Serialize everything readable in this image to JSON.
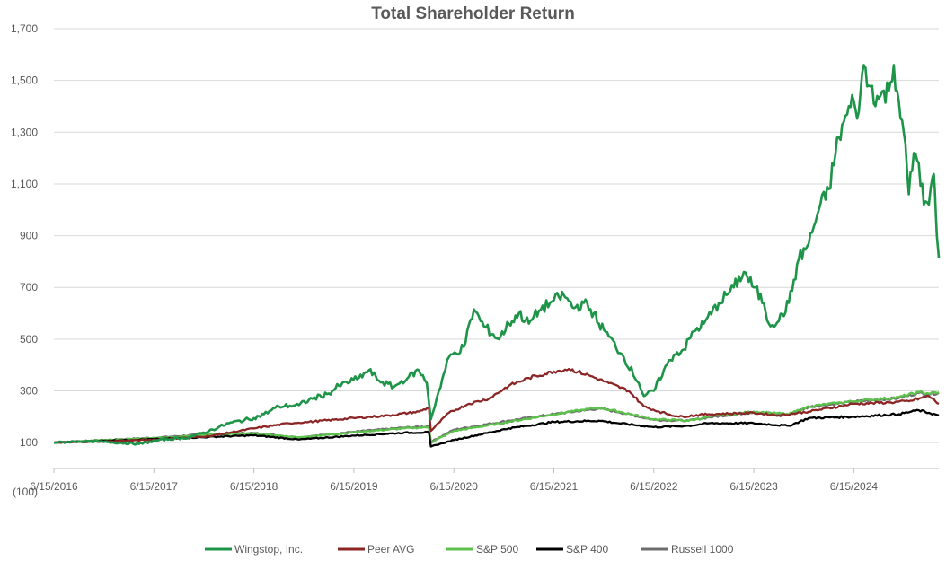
{
  "chart_data": {
    "type": "line",
    "title": "Total Shareholder Return",
    "xlabel": "",
    "ylabel": "",
    "ylim": [
      0,
      1700
    ],
    "y_ticks": [
      100,
      300,
      500,
      700,
      900,
      1100,
      1300,
      1500,
      1700
    ],
    "y_tick_labels": [
      "100",
      "300",
      "500",
      "700",
      "900",
      "1,100",
      "1,300",
      "1,500",
      "1,700"
    ],
    "y_bottom_label": "(100)",
    "x_range": [
      2016.45,
      2025.3
    ],
    "x_ticks": [
      2016.45,
      2017.45,
      2018.45,
      2019.45,
      2020.45,
      2021.45,
      2022.45,
      2023.45,
      2024.45
    ],
    "x_tick_labels": [
      "6/15/2016",
      "6/15/2017",
      "6/15/2018",
      "6/15/2019",
      "6/15/2020",
      "6/15/2021",
      "6/15/2022",
      "6/15/2023",
      "6/15/2024"
    ],
    "grid": true,
    "legend_position": "bottom",
    "series": [
      {
        "name": "Wingstop, Inc.",
        "color": "#1e9449",
        "points": [
          [
            2016.45,
            100
          ],
          [
            2016.7,
            105
          ],
          [
            2017.0,
            102
          ],
          [
            2017.3,
            95
          ],
          [
            2017.5,
            110
          ],
          [
            2017.8,
            120
          ],
          [
            2018.0,
            145
          ],
          [
            2018.2,
            175
          ],
          [
            2018.45,
            195
          ],
          [
            2018.55,
            210
          ],
          [
            2018.7,
            240
          ],
          [
            2018.9,
            245
          ],
          [
            2019.0,
            265
          ],
          [
            2019.2,
            290
          ],
          [
            2019.3,
            320
          ],
          [
            2019.5,
            350
          ],
          [
            2019.6,
            380
          ],
          [
            2019.7,
            340
          ],
          [
            2019.85,
            315
          ],
          [
            2020.0,
            355
          ],
          [
            2020.1,
            380
          ],
          [
            2020.18,
            330
          ],
          [
            2020.22,
            190
          ],
          [
            2020.3,
            300
          ],
          [
            2020.4,
            430
          ],
          [
            2020.55,
            470
          ],
          [
            2020.65,
            615
          ],
          [
            2020.75,
            550
          ],
          [
            2020.9,
            500
          ],
          [
            2021.0,
            560
          ],
          [
            2021.1,
            600
          ],
          [
            2021.2,
            560
          ],
          [
            2021.3,
            610
          ],
          [
            2021.45,
            650
          ],
          [
            2021.55,
            670
          ],
          [
            2021.65,
            620
          ],
          [
            2021.75,
            640
          ],
          [
            2021.85,
            600
          ],
          [
            2021.9,
            560
          ],
          [
            2022.0,
            510
          ],
          [
            2022.15,
            430
          ],
          [
            2022.3,
            330
          ],
          [
            2022.35,
            280
          ],
          [
            2022.45,
            300
          ],
          [
            2022.55,
            380
          ],
          [
            2022.65,
            440
          ],
          [
            2022.75,
            460
          ],
          [
            2022.85,
            530
          ],
          [
            2022.95,
            560
          ],
          [
            2023.1,
            640
          ],
          [
            2023.25,
            700
          ],
          [
            2023.35,
            760
          ],
          [
            2023.45,
            700
          ],
          [
            2023.55,
            640
          ],
          [
            2023.6,
            560
          ],
          [
            2023.7,
            570
          ],
          [
            2023.8,
            640
          ],
          [
            2023.9,
            810
          ],
          [
            2024.0,
            870
          ],
          [
            2024.1,
            1000
          ],
          [
            2024.2,
            1080
          ],
          [
            2024.3,
            1280
          ],
          [
            2024.35,
            1340
          ],
          [
            2024.45,
            1420
          ],
          [
            2024.5,
            1380
          ],
          [
            2024.55,
            1560
          ],
          [
            2024.6,
            1480
          ],
          [
            2024.7,
            1430
          ],
          [
            2024.8,
            1460
          ],
          [
            2024.85,
            1560
          ],
          [
            2024.9,
            1420
          ],
          [
            2024.95,
            1300
          ],
          [
            2025.0,
            1060
          ],
          [
            2025.05,
            1220
          ],
          [
            2025.1,
            1180
          ],
          [
            2025.15,
            1020
          ],
          [
            2025.2,
            1020
          ],
          [
            2025.24,
            1130
          ],
          [
            2025.26,
            1080
          ],
          [
            2025.28,
            900
          ],
          [
            2025.3,
            815
          ]
        ]
      },
      {
        "name": "Peer AVG",
        "color": "#8c2626",
        "points": [
          [
            2016.45,
            100
          ],
          [
            2017.0,
            105
          ],
          [
            2017.5,
            112
          ],
          [
            2018.0,
            125
          ],
          [
            2018.45,
            155
          ],
          [
            2018.8,
            175
          ],
          [
            2019.0,
            180
          ],
          [
            2019.45,
            195
          ],
          [
            2019.8,
            205
          ],
          [
            2020.1,
            220
          ],
          [
            2020.2,
            235
          ],
          [
            2020.22,
            145
          ],
          [
            2020.4,
            215
          ],
          [
            2020.6,
            250
          ],
          [
            2020.8,
            270
          ],
          [
            2021.0,
            320
          ],
          [
            2021.2,
            350
          ],
          [
            2021.45,
            375
          ],
          [
            2021.6,
            385
          ],
          [
            2021.8,
            360
          ],
          [
            2022.0,
            330
          ],
          [
            2022.2,
            300
          ],
          [
            2022.35,
            240
          ],
          [
            2022.5,
            220
          ],
          [
            2022.7,
            200
          ],
          [
            2023.0,
            210
          ],
          [
            2023.45,
            215
          ],
          [
            2023.7,
            205
          ],
          [
            2024.0,
            220
          ],
          [
            2024.45,
            250
          ],
          [
            2024.8,
            255
          ],
          [
            2025.0,
            260
          ],
          [
            2025.2,
            280
          ],
          [
            2025.3,
            250
          ]
        ]
      },
      {
        "name": "S&P 500",
        "color": "#5cc24c",
        "points": [
          [
            2016.45,
            100
          ],
          [
            2017.0,
            110
          ],
          [
            2017.5,
            118
          ],
          [
            2018.0,
            132
          ],
          [
            2018.45,
            135
          ],
          [
            2018.9,
            120
          ],
          [
            2019.45,
            140
          ],
          [
            2019.95,
            155
          ],
          [
            2020.2,
            160
          ],
          [
            2020.22,
            100
          ],
          [
            2020.45,
            145
          ],
          [
            2021.0,
            180
          ],
          [
            2021.45,
            210
          ],
          [
            2021.9,
            235
          ],
          [
            2022.1,
            220
          ],
          [
            2022.45,
            190
          ],
          [
            2022.8,
            185
          ],
          [
            2023.0,
            200
          ],
          [
            2023.45,
            220
          ],
          [
            2023.8,
            210
          ],
          [
            2024.0,
            240
          ],
          [
            2024.45,
            260
          ],
          [
            2024.9,
            275
          ],
          [
            2025.1,
            295
          ],
          [
            2025.2,
            290
          ],
          [
            2025.3,
            295
          ]
        ]
      },
      {
        "name": "S&P 400",
        "color": "#000000",
        "points": [
          [
            2016.45,
            100
          ],
          [
            2017.0,
            108
          ],
          [
            2017.5,
            114
          ],
          [
            2018.0,
            122
          ],
          [
            2018.45,
            128
          ],
          [
            2018.9,
            112
          ],
          [
            2019.45,
            127
          ],
          [
            2019.95,
            138
          ],
          [
            2020.2,
            140
          ],
          [
            2020.22,
            85
          ],
          [
            2020.45,
            110
          ],
          [
            2021.0,
            155
          ],
          [
            2021.45,
            180
          ],
          [
            2021.9,
            185
          ],
          [
            2022.1,
            175
          ],
          [
            2022.45,
            160
          ],
          [
            2022.8,
            165
          ],
          [
            2023.0,
            175
          ],
          [
            2023.45,
            175
          ],
          [
            2023.8,
            165
          ],
          [
            2024.0,
            195
          ],
          [
            2024.45,
            200
          ],
          [
            2024.9,
            210
          ],
          [
            2025.1,
            225
          ],
          [
            2025.2,
            215
          ],
          [
            2025.3,
            205
          ]
        ]
      },
      {
        "name": "Russell 1000",
        "color": "#6e6e6e",
        "points": [
          [
            2016.45,
            100
          ],
          [
            2017.0,
            111
          ],
          [
            2017.5,
            120
          ],
          [
            2018.0,
            133
          ],
          [
            2018.45,
            137
          ],
          [
            2018.9,
            120
          ],
          [
            2019.45,
            142
          ],
          [
            2019.95,
            158
          ],
          [
            2020.2,
            163
          ],
          [
            2020.22,
            103
          ],
          [
            2020.45,
            150
          ],
          [
            2021.0,
            185
          ],
          [
            2021.45,
            210
          ],
          [
            2021.9,
            232
          ],
          [
            2022.1,
            218
          ],
          [
            2022.45,
            188
          ],
          [
            2022.8,
            185
          ],
          [
            2023.0,
            198
          ],
          [
            2023.45,
            218
          ],
          [
            2023.8,
            208
          ],
          [
            2024.0,
            238
          ],
          [
            2024.45,
            258
          ],
          [
            2024.9,
            272
          ],
          [
            2025.1,
            292
          ],
          [
            2025.2,
            288
          ],
          [
            2025.3,
            292
          ]
        ]
      }
    ]
  }
}
